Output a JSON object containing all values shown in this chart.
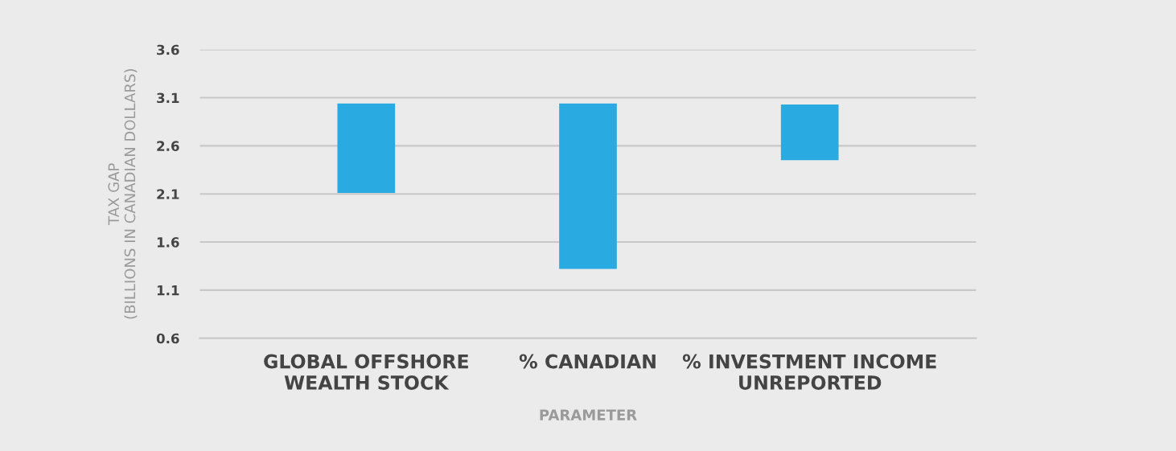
{
  "chart_data": {
    "type": "bar",
    "categories": [
      "GLOBAL OFFSHORE\nWEALTH STOCK",
      "% CANADIAN",
      "% INVESTMENT INCOME\nUNREPORTED"
    ],
    "base": [
      2.11,
      1.32,
      2.45
    ],
    "values": [
      0.93,
      1.72,
      0.58
    ],
    "color": "#29aae1",
    "xlabel": "PARAMETER",
    "ylabel": "TAX GAP\n(BILLIONS IN CANADIAN DOLLARS)",
    "ylim": [
      0.6,
      3.6
    ],
    "yticks": [
      0.6,
      1.1,
      1.6,
      2.1,
      2.6,
      3.1,
      3.6
    ],
    "grid": "y"
  }
}
